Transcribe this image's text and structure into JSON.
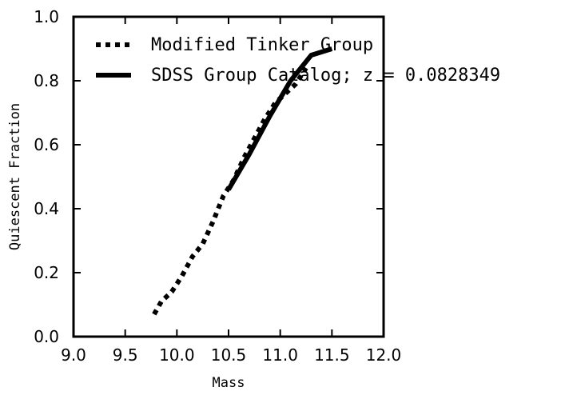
{
  "chart_data": {
    "type": "line",
    "xlabel": "Mass",
    "ylabel": "Quiescent Fraction",
    "xlim": [
      9.0,
      12.0
    ],
    "ylim": [
      0.0,
      1.0
    ],
    "xticks": [
      "9.0",
      "9.5",
      "10.0",
      "10.5",
      "11.0",
      "11.5",
      "12.0"
    ],
    "yticks": [
      "0.0",
      "0.2",
      "0.4",
      "0.6",
      "0.8",
      "1.0"
    ],
    "legend_placement": "upper-left",
    "series": [
      {
        "name": "Modified Tinker Group",
        "style": "dotted",
        "color": "#000000",
        "x": [
          9.78,
          9.85,
          9.95,
          10.05,
          10.15,
          10.25,
          10.35,
          10.45,
          10.55,
          10.65,
          10.75,
          10.85,
          10.95,
          11.05,
          11.15,
          11.25
        ],
        "y": [
          0.07,
          0.11,
          0.14,
          0.19,
          0.25,
          0.29,
          0.36,
          0.44,
          0.49,
          0.56,
          0.62,
          0.68,
          0.73,
          0.76,
          0.79,
          0.84
        ]
      },
      {
        "name": "SDSS Group Catalog; z = 0.0828349",
        "style": "solid",
        "color": "#000000",
        "x": [
          10.5,
          10.7,
          10.9,
          11.1,
          11.3,
          11.5
        ],
        "y": [
          0.46,
          0.57,
          0.69,
          0.8,
          0.88,
          0.9
        ]
      }
    ]
  }
}
